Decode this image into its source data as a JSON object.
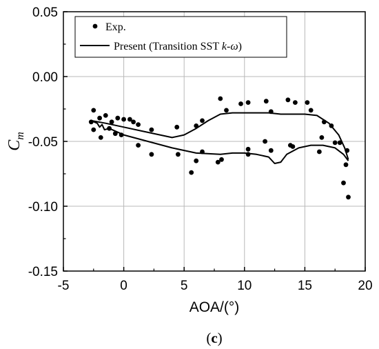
{
  "chart_data": {
    "type": "scatter",
    "title": "",
    "xlabel": "AOA/(°)",
    "ylabel_main": "C",
    "ylabel_sub": "m",
    "xlim": [
      -5,
      20
    ],
    "ylim": [
      -0.15,
      0.05
    ],
    "xticks": [
      -5,
      0,
      5,
      10,
      15,
      20
    ],
    "xtick_labels": [
      "-5",
      "0",
      "5",
      "10",
      "15",
      "20"
    ],
    "yticks": [
      0.05,
      0.0,
      -0.05,
      -0.1,
      -0.15
    ],
    "ytick_labels": [
      "0.05",
      "0.00",
      "-0.05",
      "-0.10",
      "-0.15"
    ],
    "grid": true,
    "legend_position": "top-left",
    "caption_parts": [
      "(",
      "c",
      ")"
    ],
    "legend": {
      "exp_label": "Exp.",
      "line_prefix": "Present (Transition SST ",
      "line_k": "k",
      "line_dash": "-",
      "line_omega": "ω",
      "line_suffix": ")"
    },
    "series": [
      {
        "name": "Exp.",
        "kind": "markers",
        "points": [
          [
            -2.5,
            -0.026
          ],
          [
            -2.7,
            -0.035
          ],
          [
            -2.5,
            -0.041
          ],
          [
            -2.0,
            -0.032
          ],
          [
            -1.5,
            -0.03
          ],
          [
            -1.9,
            -0.047
          ],
          [
            -1.2,
            -0.04
          ],
          [
            -1.0,
            -0.035
          ],
          [
            -0.7,
            -0.044
          ],
          [
            -0.5,
            -0.032
          ],
          [
            0.0,
            -0.033
          ],
          [
            -0.2,
            -0.045
          ],
          [
            0.5,
            -0.033
          ],
          [
            0.8,
            -0.035
          ],
          [
            1.2,
            -0.037
          ],
          [
            1.2,
            -0.053
          ],
          [
            2.3,
            -0.041
          ],
          [
            2.3,
            -0.06
          ],
          [
            4.4,
            -0.039
          ],
          [
            4.5,
            -0.06
          ],
          [
            5.6,
            -0.074
          ],
          [
            6.0,
            -0.065
          ],
          [
            6.0,
            -0.038
          ],
          [
            6.5,
            -0.034
          ],
          [
            6.5,
            -0.058
          ],
          [
            7.8,
            -0.066
          ],
          [
            8.0,
            -0.017
          ],
          [
            8.1,
            -0.064
          ],
          [
            8.5,
            -0.026
          ],
          [
            9.7,
            -0.021
          ],
          [
            10.3,
            -0.056
          ],
          [
            10.3,
            -0.06
          ],
          [
            10.3,
            -0.02
          ],
          [
            11.7,
            -0.05
          ],
          [
            11.8,
            -0.019
          ],
          [
            12.2,
            -0.027
          ],
          [
            12.2,
            -0.057
          ],
          [
            13.6,
            -0.018
          ],
          [
            13.8,
            -0.053
          ],
          [
            14.0,
            -0.054
          ],
          [
            14.2,
            -0.02
          ],
          [
            15.2,
            -0.02
          ],
          [
            15.5,
            -0.026
          ],
          [
            16.2,
            -0.058
          ],
          [
            16.4,
            -0.047
          ],
          [
            16.6,
            -0.035
          ],
          [
            17.2,
            -0.038
          ],
          [
            17.5,
            -0.051
          ],
          [
            17.9,
            -0.051
          ],
          [
            18.2,
            -0.082
          ],
          [
            18.4,
            -0.068
          ],
          [
            18.5,
            -0.057
          ],
          [
            18.6,
            -0.093
          ]
        ]
      },
      {
        "name": "Present (Transition SST k-ω)",
        "kind": "line",
        "upper": [
          [
            -2.7,
            -0.034
          ],
          [
            -1.5,
            -0.036
          ],
          [
            0.0,
            -0.039
          ],
          [
            1.5,
            -0.042
          ],
          [
            3.0,
            -0.045
          ],
          [
            4.0,
            -0.047
          ],
          [
            5.0,
            -0.045
          ],
          [
            6.0,
            -0.04
          ],
          [
            7.0,
            -0.034
          ],
          [
            8.0,
            -0.029
          ],
          [
            9.0,
            -0.028
          ],
          [
            10.0,
            -0.028
          ],
          [
            11.0,
            -0.028
          ],
          [
            12.0,
            -0.028
          ],
          [
            13.0,
            -0.029
          ],
          [
            14.0,
            -0.029
          ],
          [
            15.0,
            -0.029
          ],
          [
            16.0,
            -0.03
          ],
          [
            17.0,
            -0.036
          ],
          [
            17.8,
            -0.045
          ],
          [
            18.3,
            -0.055
          ],
          [
            18.6,
            -0.064
          ]
        ],
        "lower": [
          [
            -2.7,
            -0.034
          ],
          [
            -2.2,
            -0.036
          ],
          [
            -2.0,
            -0.039
          ],
          [
            -1.8,
            -0.037
          ],
          [
            -1.6,
            -0.041
          ],
          [
            -1.2,
            -0.04
          ],
          [
            0.0,
            -0.045
          ],
          [
            2.0,
            -0.05
          ],
          [
            4.0,
            -0.055
          ],
          [
            6.0,
            -0.059
          ],
          [
            8.0,
            -0.06
          ],
          [
            9.0,
            -0.059
          ],
          [
            10.0,
            -0.059
          ],
          [
            11.0,
            -0.06
          ],
          [
            12.0,
            -0.062
          ],
          [
            12.5,
            -0.067
          ],
          [
            13.0,
            -0.066
          ],
          [
            13.5,
            -0.06
          ],
          [
            14.5,
            -0.055
          ],
          [
            15.5,
            -0.053
          ],
          [
            16.5,
            -0.053
          ],
          [
            17.5,
            -0.055
          ],
          [
            18.2,
            -0.06
          ],
          [
            18.6,
            -0.065
          ]
        ]
      }
    ]
  }
}
